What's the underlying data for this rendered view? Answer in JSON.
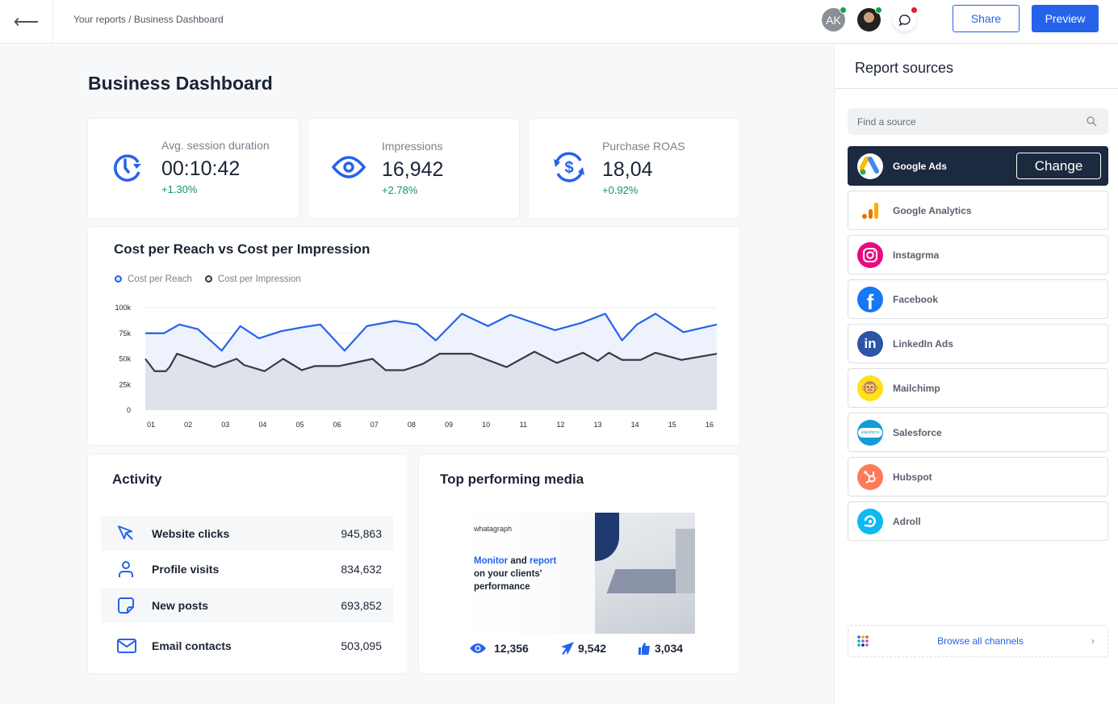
{
  "topbar": {
    "back_icon": "arrow-left-icon",
    "breadcrumb": "Your reports / Business Dashboard",
    "avatar_initials": "AK",
    "share_label": "Share",
    "preview_label": "Preview",
    "colors": {
      "accent": "#2563eb",
      "online": "#16a34a",
      "alert": "#e11d2e"
    }
  },
  "page": {
    "title": "Business Dashboard"
  },
  "kpis": [
    {
      "label": "Avg. session duration",
      "value": "00:10:42",
      "change": "+1.30%",
      "icon": "clock-refresh-icon"
    },
    {
      "label": "Impressions",
      "value": "16,942",
      "change": "+2.78%",
      "icon": "eye-icon"
    },
    {
      "label": "Purchase ROAS",
      "value": "18,04",
      "change": "+0.92%",
      "icon": "dollar-cycle-icon"
    }
  ],
  "chart_data": {
    "type": "area",
    "title": "Cost per Reach vs Cost per Impression",
    "x_ticks": [
      "01",
      "02",
      "03",
      "04",
      "05",
      "06",
      "07",
      "08",
      "09",
      "10",
      "11",
      "12",
      "13",
      "14",
      "15",
      "16"
    ],
    "y_ticks": [
      "100k",
      "75k",
      "50k",
      "25k",
      "0"
    ],
    "ylim": [
      0,
      100000
    ],
    "grid": true,
    "legend": "top-left",
    "series": [
      {
        "name": "Cost per Reach",
        "color": "#2563eb",
        "x": [
          0.85,
          1.35,
          1.76,
          2.26,
          2.9,
          3.4,
          3.9,
          4.5,
          5.1,
          5.55,
          6.2,
          6.8,
          7.55,
          8.15,
          8.65,
          9.35,
          10.05,
          10.65,
          11.85,
          12.55,
          13.2,
          13.65,
          14.05,
          14.55,
          15.3,
          16.2
        ],
        "y": [
          75000,
          75000,
          83500,
          79000,
          58000,
          82000,
          70000,
          77000,
          81000,
          83500,
          58000,
          82000,
          87000,
          83500,
          68000,
          94000,
          82000,
          93000,
          78000,
          85000,
          94000,
          68000,
          83500,
          94000,
          76000,
          83500
        ]
      },
      {
        "name": "Cost per Impression",
        "color": "#353c48",
        "x": [
          0.85,
          1.1,
          1.4,
          1.5,
          1.7,
          2.25,
          2.7,
          3.3,
          3.5,
          4.05,
          4.55,
          5.05,
          5.4,
          6.05,
          6.95,
          7.3,
          7.8,
          8.3,
          8.75,
          9.6,
          10.55,
          11.3,
          11.9,
          12.6,
          13,
          13.3,
          13.65,
          14.15,
          14.55,
          15.25,
          16.2
        ],
        "y": [
          50000,
          38000,
          38000,
          42000,
          55000,
          48000,
          42000,
          50000,
          44000,
          38000,
          50000,
          39000,
          43000,
          43000,
          50000,
          39000,
          39000,
          45000,
          55000,
          55000,
          42000,
          57000,
          46000,
          56000,
          48000,
          56000,
          49000,
          49000,
          56000,
          49000,
          55000
        ]
      }
    ]
  },
  "activity": {
    "title": "Activity",
    "rows": [
      {
        "label": "Website clicks",
        "value": "945,863",
        "icon": "cursor-icon"
      },
      {
        "label": "Profile visits",
        "value": "834,632",
        "icon": "user-icon"
      },
      {
        "label": "New posts",
        "value": "693,852",
        "icon": "sticky-note-icon"
      },
      {
        "label": "Email contacts",
        "value": "503,095",
        "icon": "mail-icon"
      }
    ]
  },
  "media": {
    "title": "Top performing media",
    "brand": "whatagraph",
    "headline_1": "Monitor",
    "headline_2": " and ",
    "headline_3": "report",
    "headline_4": "on your clients'",
    "headline_5": "performance",
    "stats": [
      {
        "icon": "eye-icon",
        "value": "12,356"
      },
      {
        "icon": "send-icon",
        "value": "9,542"
      },
      {
        "icon": "thumbs-up-icon",
        "value": "3,034"
      }
    ]
  },
  "sidebar": {
    "title": "Report sources",
    "search_placeholder": "Find a source",
    "change_label": "Change",
    "browse_label": "Browse all channels",
    "sources": [
      {
        "name": "Google Ads",
        "active": true
      },
      {
        "name": "Google Analytics"
      },
      {
        "name": "Instagrma"
      },
      {
        "name": "Facebook"
      },
      {
        "name": "LinkedIn Ads"
      },
      {
        "name": "Mailchimp"
      },
      {
        "name": "Salesforce"
      },
      {
        "name": "Hubspot"
      },
      {
        "name": "Adroll"
      }
    ]
  }
}
